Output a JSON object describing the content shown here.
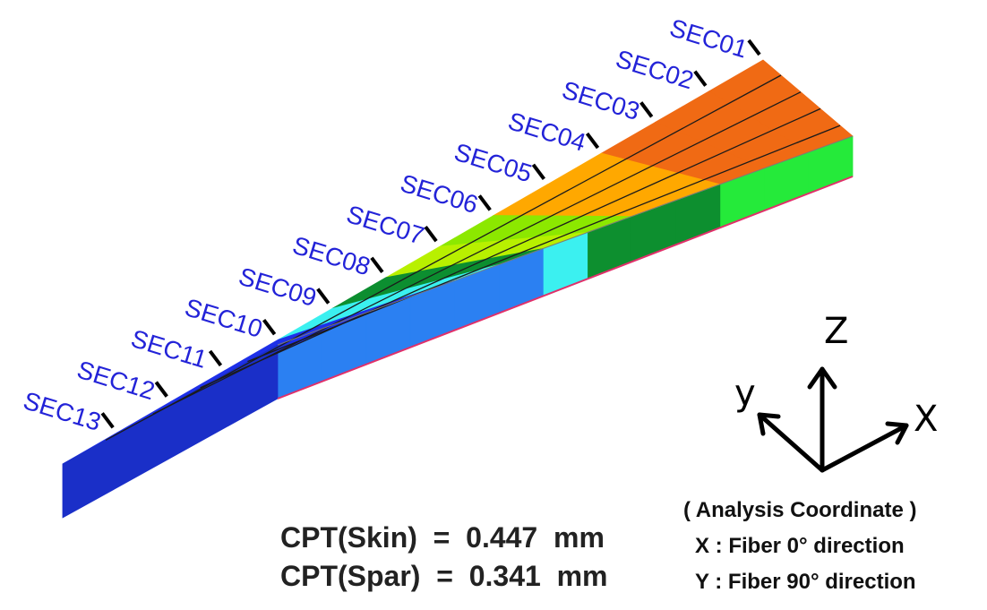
{
  "sections": {
    "labels": [
      "SEC01",
      "SEC02",
      "SEC03",
      "SEC04",
      "SEC05",
      "SEC06",
      "SEC07",
      "SEC08",
      "SEC09",
      "SEC10",
      "SEC11",
      "SEC12",
      "SEC13"
    ],
    "colors": [
      "#f06a14",
      "#f06a14",
      "#f06a14",
      "#ffa800",
      "#ffa800",
      "#8ce800",
      "#b8f000",
      "#0c8e30",
      "#3bf0f0",
      "#1e30e8",
      "#1e30e8",
      "#1e30e8",
      "#1e30e8"
    ],
    "spar_colors": [
      "#25ea3a",
      "#25ea3a",
      "#25ea3a",
      "#0d8f2f",
      "#0d8f2f",
      "#0d8f2f",
      "#3bf0f0",
      "#2b80f2",
      "#2b80f2",
      "#2b80f2",
      "#2b80f2",
      "#2b80f2",
      "#2b80f2"
    ]
  },
  "axes": {
    "z": "Z",
    "y": "y",
    "x": "X"
  },
  "coordinate_legend": {
    "title": "( Analysis Coordinate )",
    "x_line": "X : Fiber 0° direction",
    "y_line": "Y : Fiber 90° direction"
  },
  "cpt": {
    "skin": "CPT(Skin)  =  0.447  mm",
    "spar": "CPT(Spar)  =  0.341  mm"
  }
}
